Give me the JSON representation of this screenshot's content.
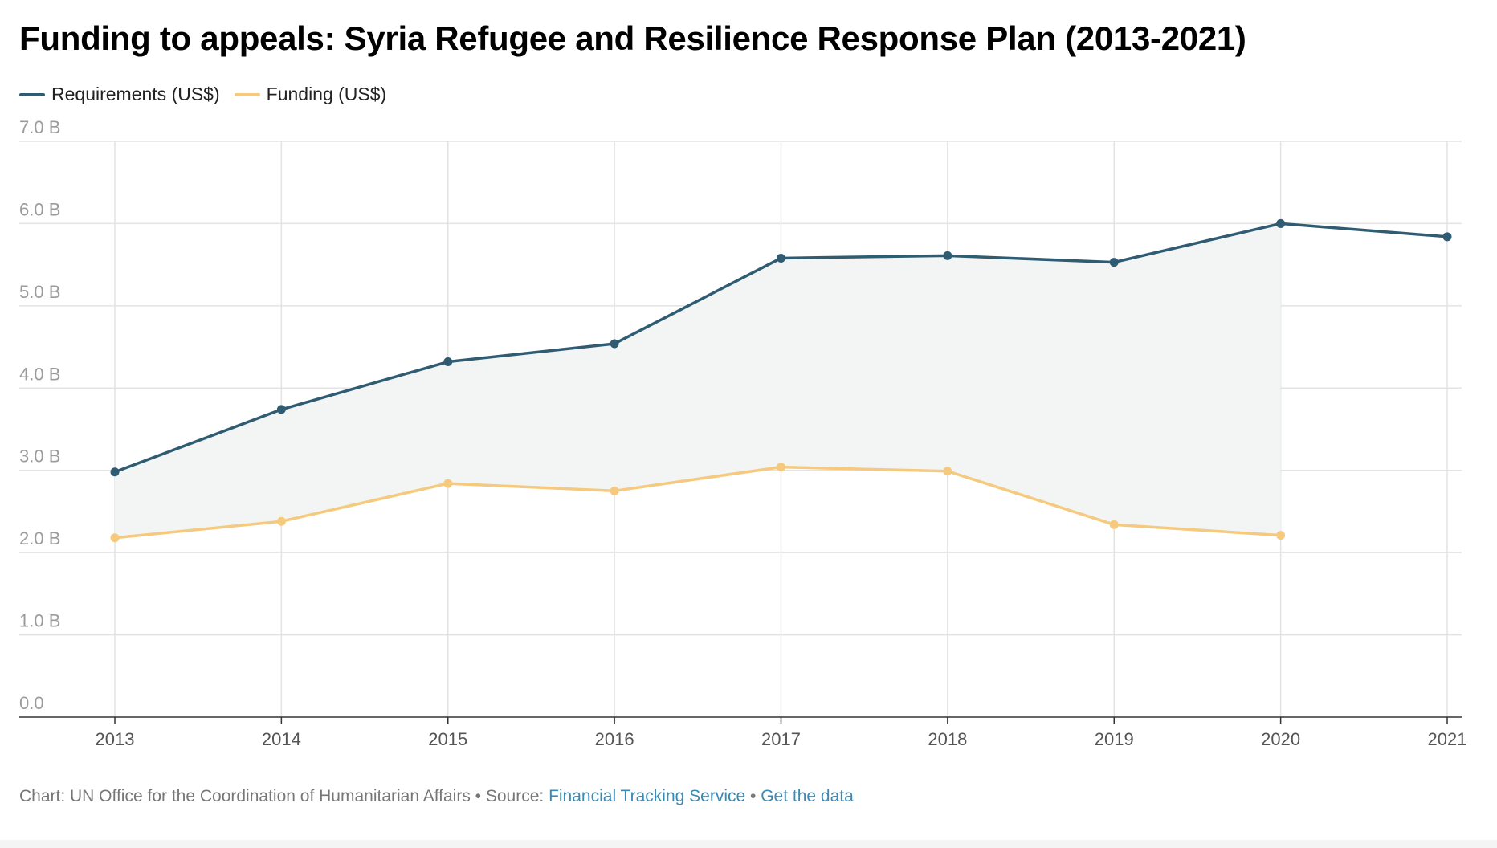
{
  "title": "Funding to appeals: Syria Refugee and Resilience Response Plan (2013-2021)",
  "legend": [
    {
      "label": "Requirements (US$)",
      "color": "#2f5c72"
    },
    {
      "label": "Funding (US$)",
      "color": "#f5c97e"
    }
  ],
  "footer": {
    "prefix": "Chart: UN Office for the Coordination of Humanitarian Affairs • Source: ",
    "source_link": "Financial Tracking Service",
    "separator": " • ",
    "data_link": "Get the data"
  },
  "chart_data": {
    "type": "line",
    "title": "Funding to appeals: Syria Refugee and Resilience Response Plan (2013-2021)",
    "xlabel": "",
    "ylabel": "",
    "x": [
      "2013",
      "2014",
      "2015",
      "2016",
      "2017",
      "2018",
      "2019",
      "2020",
      "2021"
    ],
    "y_ticks": [
      "0.0",
      "1.0 B",
      "2.0 B",
      "3.0 B",
      "4.0 B",
      "5.0 B",
      "6.0 B",
      "7.0 B"
    ],
    "ylim": [
      0,
      7
    ],
    "units": "billion US$",
    "grid": true,
    "legend_position": "top-left",
    "gap_fill": true,
    "gap_fill_color": "#f3f5f5",
    "series": [
      {
        "name": "Requirements (US$)",
        "color": "#2f5c72",
        "values": [
          2.98,
          3.74,
          4.32,
          4.54,
          5.58,
          5.61,
          5.53,
          6.0,
          5.84
        ]
      },
      {
        "name": "Funding (US$)",
        "color": "#f5c97e",
        "values": [
          2.18,
          2.38,
          2.84,
          2.75,
          3.04,
          2.99,
          2.34,
          2.21,
          null
        ]
      }
    ]
  }
}
